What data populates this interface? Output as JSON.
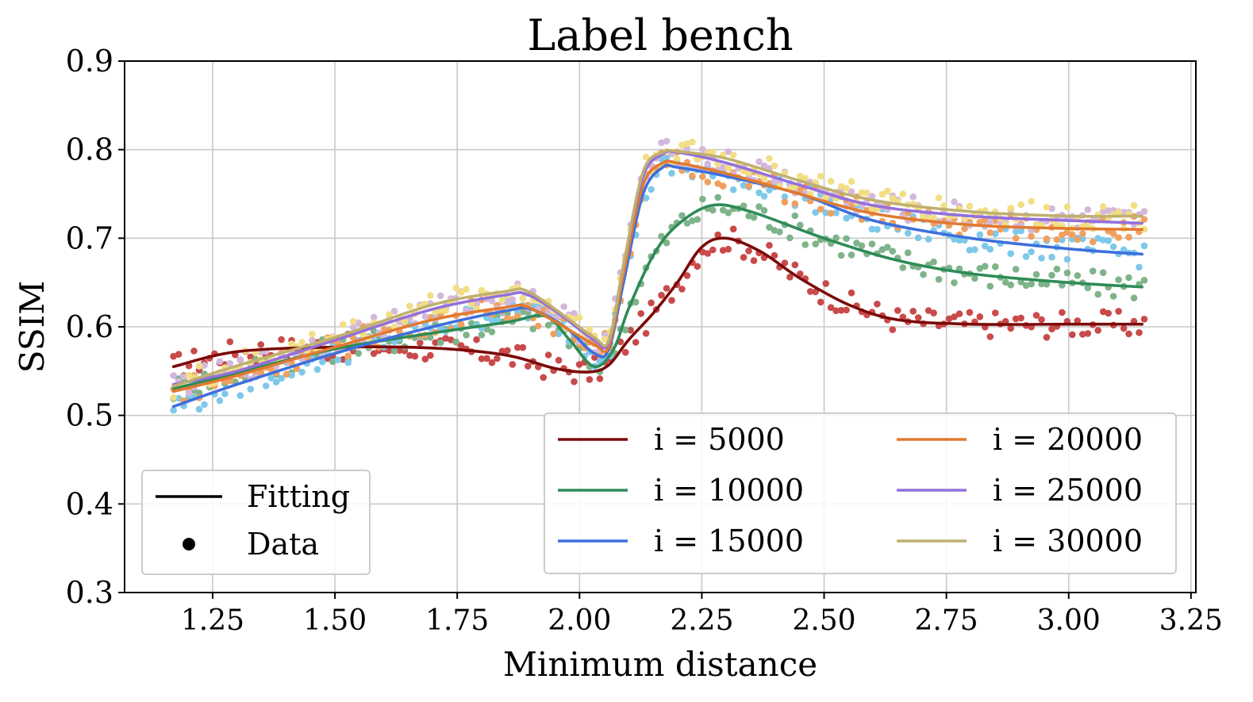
{
  "chart_data": {
    "type": "line",
    "title": "Label bench",
    "xlabel": "Minimum distance",
    "ylabel": "SSIM",
    "xlim": [
      1.07,
      3.26
    ],
    "ylim": [
      0.3,
      0.9
    ],
    "xticks": [
      1.25,
      1.5,
      1.75,
      2.0,
      2.25,
      2.5,
      2.75,
      3.0,
      3.25
    ],
    "xtick_labels": [
      "1.25",
      "1.50",
      "1.75",
      "2.00",
      "2.25",
      "2.50",
      "2.75",
      "3.00",
      "3.25"
    ],
    "yticks": [
      0.3,
      0.4,
      0.5,
      0.6,
      0.7,
      0.8,
      0.9
    ],
    "ytick_labels": [
      "0.3",
      "0.4",
      "0.5",
      "0.6",
      "0.7",
      "0.8",
      "0.9"
    ],
    "grid": true,
    "style_legend": {
      "placement": "lower-left",
      "entries": [
        {
          "label": "Fitting",
          "marker": "line"
        },
        {
          "label": "Data",
          "marker": "dot"
        }
      ]
    },
    "series_legend": {
      "placement": "lower-right",
      "columns": 2
    },
    "series": [
      {
        "name": "i = 5000",
        "line_color": "#7b0a0a",
        "dot_color": "#c94a4a",
        "x": [
          1.17,
          1.3,
          1.5,
          1.7,
          1.85,
          1.95,
          2.02,
          2.06,
          2.1,
          2.15,
          2.2,
          2.25,
          2.3,
          2.37,
          2.45,
          2.55,
          2.65,
          2.8,
          3.0,
          3.15
        ],
        "y": [
          0.555,
          0.572,
          0.577,
          0.576,
          0.568,
          0.553,
          0.549,
          0.557,
          0.585,
          0.615,
          0.65,
          0.69,
          0.7,
          0.685,
          0.655,
          0.625,
          0.608,
          0.603,
          0.603,
          0.603
        ]
      },
      {
        "name": "i = 10000",
        "line_color": "#2e8b57",
        "dot_color": "#7fb38a",
        "x": [
          1.17,
          1.3,
          1.5,
          1.7,
          1.85,
          1.93,
          1.98,
          2.03,
          2.07,
          2.1,
          2.15,
          2.2,
          2.27,
          2.35,
          2.5,
          2.65,
          2.8,
          3.0,
          3.15
        ],
        "y": [
          0.53,
          0.548,
          0.575,
          0.593,
          0.605,
          0.612,
          0.585,
          0.555,
          0.575,
          0.62,
          0.68,
          0.715,
          0.737,
          0.73,
          0.7,
          0.675,
          0.66,
          0.65,
          0.645
        ]
      },
      {
        "name": "i = 15000",
        "line_color": "#3f6fdc",
        "dot_color": "#7ec8ea",
        "x": [
          1.17,
          1.3,
          1.5,
          1.7,
          1.85,
          1.9,
          1.97,
          2.03,
          2.06,
          2.09,
          2.13,
          2.17,
          2.2,
          2.3,
          2.45,
          2.6,
          2.8,
          3.0,
          3.15
        ],
        "y": [
          0.51,
          0.535,
          0.57,
          0.6,
          0.618,
          0.62,
          0.6,
          0.57,
          0.575,
          0.65,
          0.75,
          0.78,
          0.78,
          0.77,
          0.75,
          0.72,
          0.7,
          0.688,
          0.682
        ]
      },
      {
        "name": "i = 20000",
        "line_color": "#e07a30",
        "dot_color": "#f0a060",
        "x": [
          1.17,
          1.3,
          1.5,
          1.7,
          1.85,
          1.89,
          1.95,
          2.03,
          2.06,
          2.09,
          2.13,
          2.17,
          2.2,
          2.3,
          2.45,
          2.6,
          2.8,
          3.0,
          3.15
        ],
        "y": [
          0.527,
          0.545,
          0.577,
          0.608,
          0.622,
          0.623,
          0.606,
          0.58,
          0.578,
          0.66,
          0.76,
          0.785,
          0.785,
          0.773,
          0.75,
          0.728,
          0.715,
          0.711,
          0.71
        ]
      },
      {
        "name": "i = 25000",
        "line_color": "#9370db",
        "dot_color": "#d4b8dc",
        "x": [
          1.17,
          1.3,
          1.5,
          1.7,
          1.85,
          1.89,
          1.95,
          2.03,
          2.06,
          2.09,
          2.13,
          2.17,
          2.2,
          2.3,
          2.45,
          2.6,
          2.8,
          3.0,
          3.15
        ],
        "y": [
          0.535,
          0.55,
          0.585,
          0.62,
          0.636,
          0.637,
          0.618,
          0.585,
          0.583,
          0.67,
          0.77,
          0.795,
          0.797,
          0.785,
          0.76,
          0.737,
          0.725,
          0.72,
          0.717
        ]
      },
      {
        "name": "i = 30000",
        "line_color": "#c0b070",
        "dot_color": "#f2de85",
        "x": [
          1.17,
          1.3,
          1.5,
          1.7,
          1.85,
          1.89,
          1.95,
          2.03,
          2.06,
          2.09,
          2.13,
          2.17,
          2.2,
          2.3,
          2.45,
          2.6,
          2.8,
          3.0,
          3.15
        ],
        "y": [
          0.533,
          0.556,
          0.588,
          0.625,
          0.64,
          0.641,
          0.62,
          0.588,
          0.585,
          0.67,
          0.775,
          0.797,
          0.798,
          0.79,
          0.765,
          0.743,
          0.73,
          0.725,
          0.725
        ]
      }
    ]
  }
}
